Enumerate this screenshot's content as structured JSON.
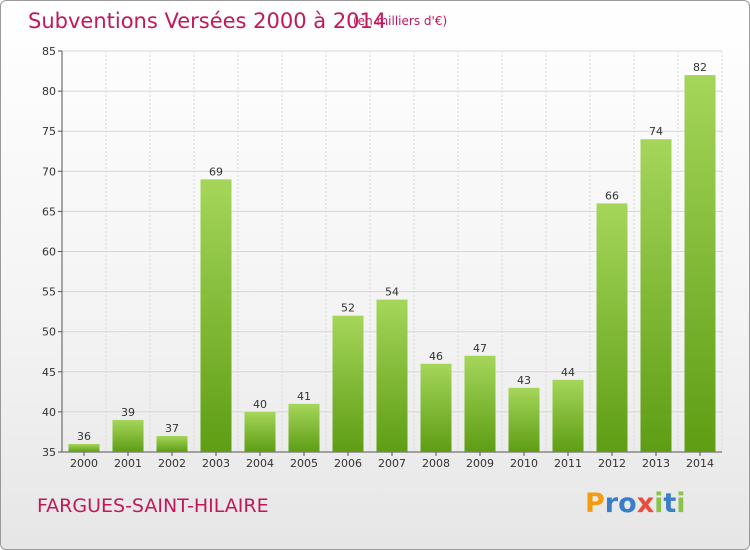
{
  "header": {
    "title": "Subventions Versées 2000 à 2014",
    "subtitle": "(en milliers d'€)"
  },
  "footer": {
    "city": "FARGUES-SAINT-HILAIRE",
    "logo_letters": [
      "P",
      "r",
      "o",
      "x",
      "i",
      "t",
      "i"
    ],
    "logo_colors": [
      "#f39c12",
      "#3a7dc9",
      "#3a7dc9",
      "#e74c3c",
      "#8bc34a",
      "#3a7dc9",
      "#8bc34a"
    ]
  },
  "colors": {
    "bar_light": "#a5d65a",
    "bar_dark": "#5e9d14",
    "grid": "#d6d6d6",
    "title": "#c2185b"
  },
  "chart_data": {
    "type": "bar",
    "categories": [
      "2000",
      "2001",
      "2002",
      "2003",
      "2004",
      "2005",
      "2006",
      "2007",
      "2008",
      "2009",
      "2010",
      "2011",
      "2012",
      "2013",
      "2014"
    ],
    "values": [
      36,
      39,
      37,
      69,
      40,
      41,
      52,
      54,
      46,
      47,
      43,
      44,
      66,
      74,
      82
    ],
    "yticks": [
      35,
      40,
      45,
      50,
      55,
      60,
      65,
      70,
      75,
      80,
      85
    ],
    "ylim": [
      35,
      85
    ],
    "grid": true,
    "xlabel": "",
    "ylabel": ""
  }
}
